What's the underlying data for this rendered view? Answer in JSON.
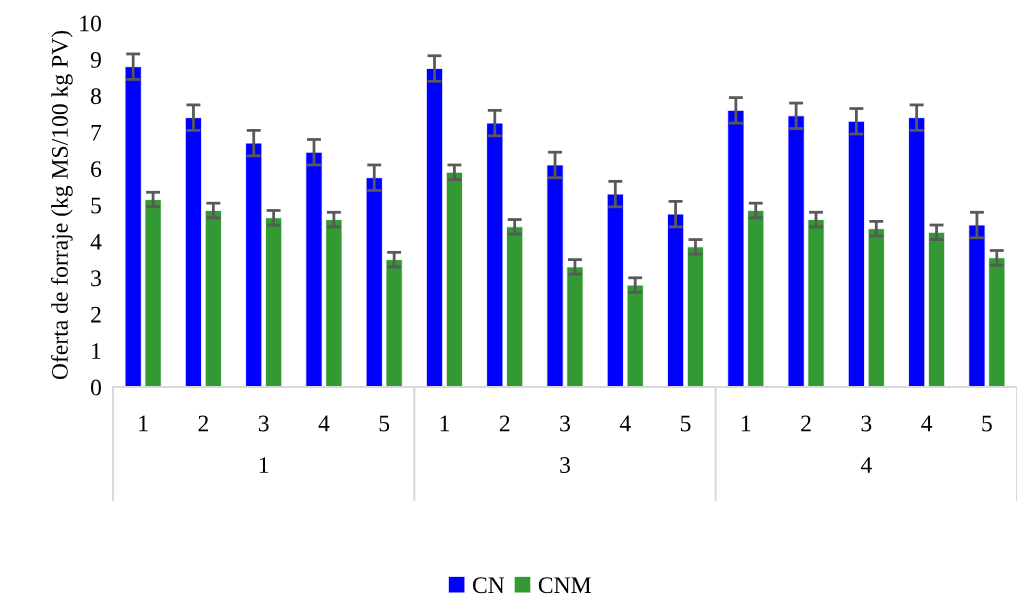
{
  "chart_data": {
    "type": "bar",
    "ylabel": "Oferta de forraje (kg MS/100 kg PV)",
    "categories": [
      "1",
      "2",
      "3",
      "4",
      "5",
      "1",
      "2",
      "3",
      "4",
      "5",
      "1",
      "2",
      "3",
      "4",
      "5"
    ],
    "series": [
      {
        "name": "CN",
        "color": "#0000ff",
        "values": [
          8.8,
          7.4,
          6.7,
          6.45,
          5.75,
          8.75,
          7.25,
          6.1,
          5.3,
          4.75,
          7.6,
          7.45,
          7.3,
          7.4,
          4.45
        ],
        "errors": [
          0.35,
          0.35,
          0.35,
          0.35,
          0.35,
          0.35,
          0.35,
          0.35,
          0.35,
          0.35,
          0.35,
          0.35,
          0.35,
          0.35,
          0.35
        ]
      },
      {
        "name": "CNM",
        "color": "#339933",
        "values": [
          5.15,
          4.85,
          4.65,
          4.6,
          3.5,
          5.9,
          4.4,
          3.3,
          2.8,
          3.85,
          4.85,
          4.6,
          4.35,
          4.25,
          3.55
        ],
        "errors": [
          0.2,
          0.2,
          0.2,
          0.2,
          0.2,
          0.2,
          0.2,
          0.2,
          0.2,
          0.2,
          0.2,
          0.2,
          0.2,
          0.2,
          0.2
        ]
      }
    ],
    "annotations": [
      "1",
      "3",
      "4"
    ],
    "ylim": [
      0,
      10
    ],
    "yticks": [
      0,
      1,
      2,
      3,
      4,
      5,
      6,
      7,
      8,
      9,
      10
    ],
    "grid": false,
    "legend": "bottom"
  }
}
